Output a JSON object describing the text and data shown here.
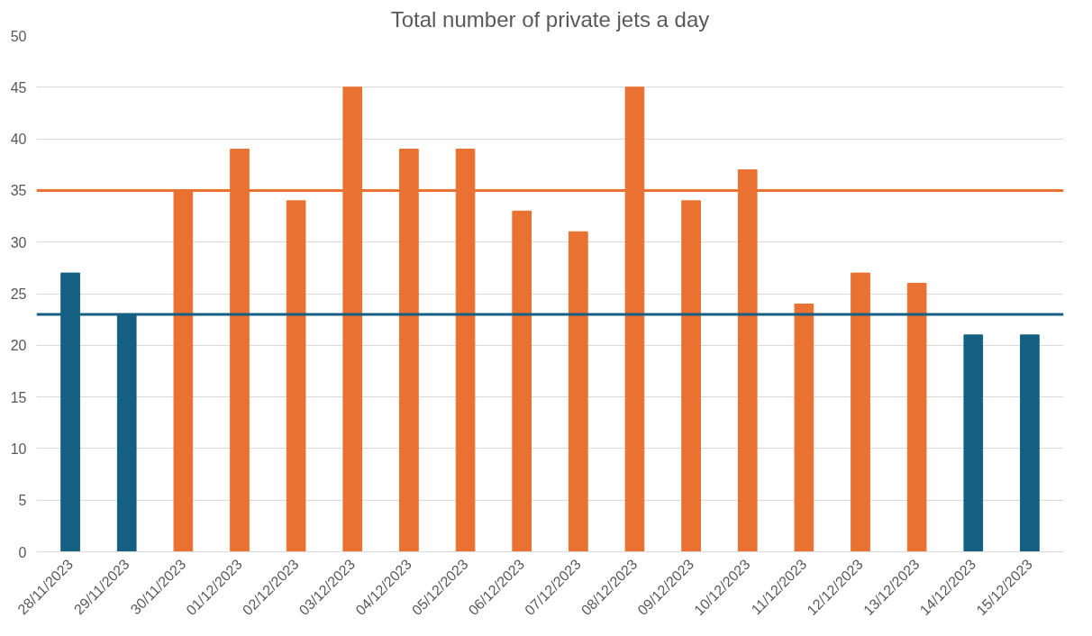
{
  "chart_data": {
    "type": "bar",
    "title": "Total number of private jets a day",
    "categories": [
      "28/11/2023",
      "29/11/2023",
      "30/11/2023",
      "01/12/2023",
      "02/12/2023",
      "03/12/2023",
      "04/12/2023",
      "05/12/2023",
      "06/12/2023",
      "07/12/2023",
      "08/12/2023",
      "09/12/2023",
      "10/12/2023",
      "11/12/2023",
      "12/12/2023",
      "13/12/2023",
      "14/12/2023",
      "15/12/2023"
    ],
    "values": [
      27,
      23,
      35,
      39,
      34,
      45,
      39,
      39,
      33,
      31,
      45,
      34,
      37,
      24,
      27,
      26,
      21,
      21
    ],
    "colors": [
      "#156082",
      "#156082",
      "#e97132",
      "#e97132",
      "#e97132",
      "#e97132",
      "#e97132",
      "#e97132",
      "#e97132",
      "#e97132",
      "#e97132",
      "#e97132",
      "#e97132",
      "#e97132",
      "#e97132",
      "#e97132",
      "#156082",
      "#156082"
    ],
    "ylim": [
      0,
      50
    ],
    "yticks": [
      0,
      5,
      10,
      15,
      20,
      25,
      30,
      35,
      40,
      45,
      50
    ],
    "grid": "y",
    "ref_lines": [
      {
        "axis": "y",
        "value": 35,
        "color": "#e97132"
      },
      {
        "axis": "y",
        "value": 23,
        "color": "#156082"
      }
    ]
  }
}
